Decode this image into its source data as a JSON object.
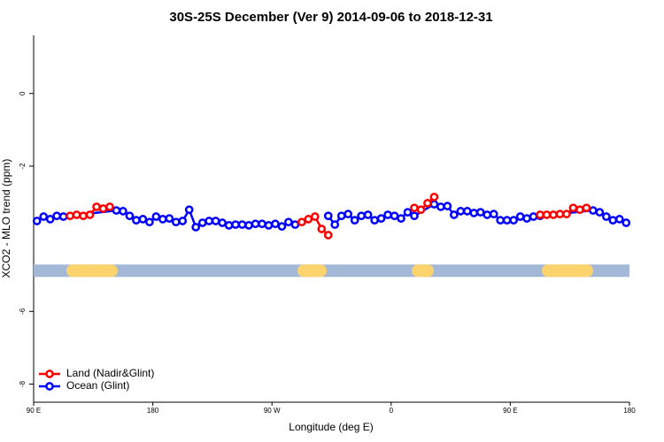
{
  "chart_data": {
    "type": "line",
    "title": "30S-25S December (Ver 9)   2014-09-06 to 2018-12-31",
    "xlabel": "Longitude (deg E)",
    "ylabel": "XCO2 - MLO trend (ppm)",
    "xlim": [
      90,
      540
    ],
    "ylim": [
      -8.5,
      1.6
    ],
    "xticks": [
      {
        "value": 90,
        "label": "90 E"
      },
      180,
      {
        "value": 270,
        "label": "90 W"
      },
      {
        "value": 360,
        "label": "0"
      },
      {
        "value": 450,
        "label": "90 E"
      },
      {
        "value": 540,
        "label": "180"
      }
    ],
    "yticks": [
      0,
      -2,
      -6,
      -8
    ],
    "legend": "bottom-left",
    "series": [
      {
        "name": "Land (Nadir&Glint)",
        "color": "#ff0000",
        "x": [
          117.5,
          122.5,
          127.5,
          132.5,
          137.5,
          142.5,
          147.5,
          220,
          292.5,
          297.5,
          302.5,
          307.5,
          312.5,
          345,
          377.5,
          382.5,
          387.5,
          392.5,
          430,
          472.5,
          477.5,
          482.5,
          487.5,
          492.5,
          497.5,
          502.5,
          507.5
        ],
        "values": [
          -3.37,
          -3.34,
          -3.37,
          -3.34,
          -3.12,
          -3.17,
          -3.12,
          null,
          -3.54,
          -3.46,
          -3.39,
          -3.73,
          -3.9,
          null,
          -3.15,
          -3.2,
          -3.02,
          -2.85,
          null,
          -3.34,
          -3.34,
          -3.34,
          -3.32,
          -3.32,
          -3.15,
          -3.2,
          -3.15
        ]
      },
      {
        "name": "Ocean (Glint)",
        "color": "#0000ff",
        "x": [
          92.5,
          97.5,
          102.5,
          107.5,
          112.5,
          152.5,
          157.5,
          162.5,
          167.5,
          172.5,
          177.5,
          182.5,
          187.5,
          192.5,
          197.5,
          202.5,
          207.5,
          212.5,
          217.5,
          222.5,
          227.5,
          232.5,
          237.5,
          242.5,
          247.5,
          252.5,
          257.5,
          262.5,
          267.5,
          272.5,
          277.5,
          282.5,
          287.5,
          300,
          312.5,
          317.5,
          322.5,
          327.5,
          332.5,
          337.5,
          342.5,
          347.5,
          352.5,
          357.5,
          362.5,
          367.5,
          372.5,
          377.5,
          392.5,
          397.5,
          402.5,
          407.5,
          412.5,
          417.5,
          422.5,
          427.5,
          432.5,
          437.5,
          442.5,
          447.5,
          452.5,
          457.5,
          462.5,
          467.5,
          472.5,
          512.5,
          517.5,
          522.5,
          527.5,
          532.5,
          537.5
        ],
        "values": [
          -3.51,
          -3.39,
          -3.46,
          -3.37,
          -3.39,
          -3.22,
          -3.24,
          -3.37,
          -3.49,
          -3.46,
          -3.54,
          -3.39,
          -3.46,
          -3.44,
          -3.54,
          -3.51,
          -3.2,
          -3.68,
          -3.56,
          -3.51,
          -3.51,
          -3.56,
          -3.63,
          -3.61,
          -3.61,
          -3.63,
          -3.59,
          -3.59,
          -3.63,
          -3.59,
          -3.66,
          -3.54,
          -3.61,
          null,
          -3.37,
          -3.61,
          -3.37,
          -3.32,
          -3.49,
          -3.37,
          -3.34,
          -3.49,
          -3.44,
          -3.34,
          -3.37,
          -3.44,
          -3.27,
          -3.37,
          -3.05,
          -3.12,
          -3.1,
          -3.34,
          -3.24,
          -3.24,
          -3.29,
          -3.27,
          -3.34,
          -3.32,
          -3.49,
          -3.49,
          -3.49,
          -3.39,
          -3.44,
          -3.39,
          -3.37,
          -3.22,
          -3.27,
          -3.39,
          -3.49,
          -3.46,
          -3.56
        ]
      }
    ],
    "band": {
      "value": -4.88,
      "color": "#a3b8d6",
      "land_color": "#fcd36c",
      "land": [
        [
          114.7,
          153.5
        ],
        [
          289.3,
          311.3
        ],
        [
          375.5,
          392.2
        ],
        [
          473.8,
          512.6
        ]
      ]
    }
  }
}
